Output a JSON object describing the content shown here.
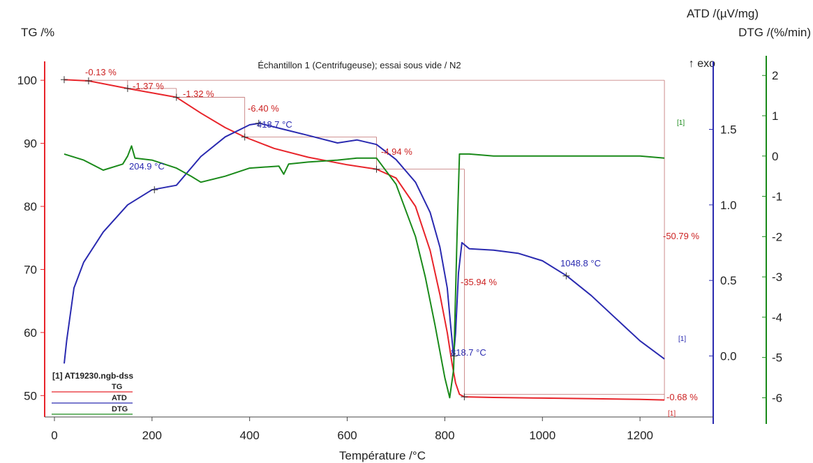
{
  "chart_data": {
    "type": "line",
    "title": "Échantillon 1 (Centrifugeuse); essai sous vide / N2",
    "exo_label": "↑ exo",
    "xlabel": "Température /°C",
    "xlim": [
      -20,
      1350
    ],
    "xticks": [
      0,
      200,
      400,
      600,
      800,
      1000,
      1200
    ],
    "axes": {
      "tg": {
        "label": "TG /%",
        "range": [
          45.5,
          103
        ],
        "ticks": [
          50,
          60,
          70,
          80,
          90,
          100
        ],
        "color": "#e8242a"
      },
      "atd": {
        "label": "ATD /(µV/mg)",
        "range": [
          -0.45,
          1.95
        ],
        "ticks": [
          "0.0",
          "0.5",
          "1.0",
          "1.5"
        ],
        "color": "#2a2ab0"
      },
      "dtg": {
        "label": "DTG /(%/min)",
        "range": [
          -6.65,
          2.35
        ],
        "ticks": [
          -6,
          -5,
          -4,
          -3,
          -2,
          -1,
          0,
          1,
          2
        ],
        "color": "#1a8a1a"
      }
    },
    "series": [
      {
        "name": "TG",
        "axis": "tg",
        "color": "#e8242a",
        "x": [
          20,
          70,
          150,
          250,
          300,
          350,
          390,
          450,
          520,
          600,
          660,
          700,
          740,
          770,
          790,
          805,
          815,
          822,
          830,
          840,
          900,
          1000,
          1100,
          1200,
          1250
        ],
        "y": [
          100.1,
          99.9,
          98.7,
          97.3,
          94.8,
          92.5,
          91.0,
          89.2,
          87.8,
          86.6,
          85.9,
          84.5,
          80.0,
          73.0,
          66.0,
          60.0,
          55.0,
          52.0,
          50.2,
          49.8,
          49.7,
          49.6,
          49.5,
          49.4,
          49.3
        ]
      },
      {
        "name": "ATD",
        "axis": "atd",
        "color": "#2a2ab0",
        "x": [
          20,
          25,
          40,
          60,
          100,
          150,
          200,
          250,
          300,
          350,
          400,
          420,
          470,
          520,
          580,
          620,
          660,
          700,
          740,
          770,
          790,
          805,
          812,
          818,
          822,
          828,
          835,
          850,
          900,
          950,
          1000,
          1050,
          1100,
          1150,
          1200,
          1250
        ],
        "y": [
          -0.05,
          0.1,
          0.45,
          0.62,
          0.82,
          1.0,
          1.1,
          1.13,
          1.32,
          1.45,
          1.53,
          1.54,
          1.5,
          1.46,
          1.41,
          1.43,
          1.4,
          1.3,
          1.15,
          0.95,
          0.72,
          0.45,
          0.2,
          0.0,
          0.15,
          0.55,
          0.75,
          0.71,
          0.7,
          0.68,
          0.63,
          0.53,
          0.4,
          0.25,
          0.1,
          -0.02
        ]
      },
      {
        "name": "DTG",
        "axis": "dtg",
        "color": "#1a8a1a",
        "x": [
          20,
          60,
          100,
          140,
          150,
          158,
          165,
          200,
          250,
          280,
          300,
          350,
          400,
          460,
          470,
          480,
          520,
          580,
          620,
          660,
          700,
          740,
          760,
          780,
          800,
          810,
          818,
          825,
          830,
          850,
          900,
          1000,
          1100,
          1200,
          1250
        ],
        "y": [
          0.05,
          -0.1,
          -0.35,
          -0.2,
          0.0,
          0.25,
          -0.05,
          -0.1,
          -0.3,
          -0.5,
          -0.65,
          -0.5,
          -0.3,
          -0.25,
          -0.45,
          -0.2,
          -0.15,
          -0.1,
          -0.05,
          -0.05,
          -0.7,
          -2.0,
          -3.0,
          -4.2,
          -5.5,
          -6.0,
          -5.3,
          -2.0,
          0.05,
          0.05,
          0.0,
          0.0,
          0.0,
          0.0,
          -0.05
        ]
      }
    ],
    "annotations": {
      "tg_steps": [
        "-0.13 %",
        "-1.37 %",
        "-1.32 %",
        "-6.40 %",
        "-4.94 %",
        "-35.94 %",
        "-50.79 %",
        "-0.68 %"
      ],
      "peaks": [
        "204.9 °C",
        "418.7 °C",
        "818.7 °C",
        "1048.8 °C"
      ],
      "markers": [
        "[1]",
        "[1]",
        "[1]"
      ]
    },
    "legend": {
      "file": "[1] AT19230.ngb-dss",
      "entries": [
        "TG",
        "ATD",
        "DTG"
      ],
      "placement": "bottom-left"
    }
  }
}
